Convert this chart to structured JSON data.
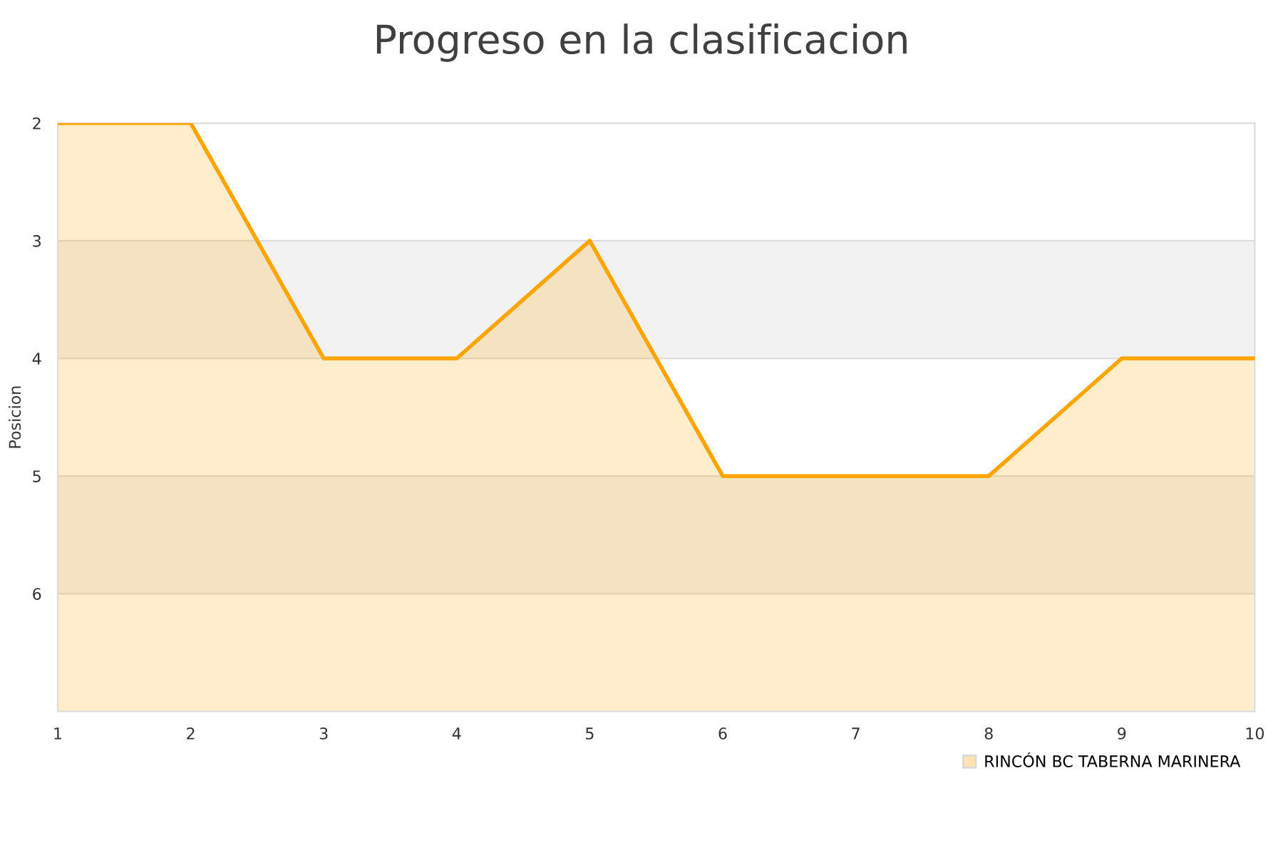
{
  "chart_data": {
    "type": "area",
    "title": "Progreso en la clasificacion",
    "ylabel": "Posicion",
    "x": [
      1,
      2,
      3,
      4,
      5,
      6,
      7,
      8,
      9,
      10
    ],
    "series": [
      {
        "name": "RINCÓN BC TABERNA MARINERA",
        "color": "#ffa500",
        "values": [
          2,
          2,
          4,
          4,
          3,
          5,
          5,
          5,
          4,
          4
        ]
      }
    ],
    "xlim": [
      1,
      10
    ],
    "xticks": [
      1,
      2,
      3,
      4,
      5,
      6,
      7,
      8,
      9,
      10
    ],
    "ylim": [
      7,
      2
    ],
    "yticks": [
      2,
      3,
      4,
      5,
      6
    ],
    "bands": [
      {
        "axis": "y",
        "from": 3,
        "to": 4,
        "color": "#f2f2f2"
      },
      {
        "axis": "y",
        "from": 5,
        "to": 6,
        "color": "#f2f2f2"
      }
    ],
    "grid": "y",
    "legend": "bottom right"
  }
}
